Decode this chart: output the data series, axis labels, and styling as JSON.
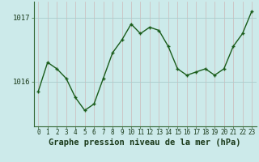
{
  "x": [
    0,
    1,
    2,
    3,
    4,
    5,
    6,
    7,
    8,
    9,
    10,
    11,
    12,
    13,
    14,
    15,
    16,
    17,
    18,
    19,
    20,
    21,
    22,
    23
  ],
  "y": [
    1015.85,
    1016.3,
    1016.2,
    1016.05,
    1015.75,
    1015.55,
    1015.65,
    1016.05,
    1016.45,
    1016.65,
    1016.9,
    1016.75,
    1016.85,
    1016.8,
    1016.55,
    1016.2,
    1016.1,
    1016.15,
    1016.2,
    1016.1,
    1016.2,
    1016.55,
    1016.75,
    1017.1
  ],
  "line_color": "#1a5c1a",
  "marker_color": "#1a5c1a",
  "bg_color": "#cceaea",
  "hgrid_color": "#aacccc",
  "vgrid_color": "#ccb8b8",
  "xlabel": "Graphe pression niveau de la mer (hPa)",
  "xlabel_fontsize": 7.5,
  "ylabel_ticks": [
    1016,
    1017
  ],
  "xlim": [
    -0.5,
    23.5
  ],
  "ylim": [
    1015.3,
    1017.25
  ],
  "ytick_fontsize": 6.5,
  "xtick_fontsize": 5.5,
  "spine_color": "#336633"
}
